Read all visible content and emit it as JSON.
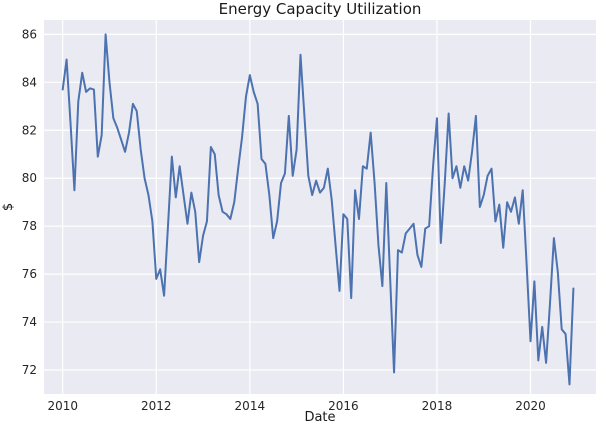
{
  "chart_data": {
    "type": "line",
    "title": "Energy Capacity Utilization",
    "xlabel": "Date",
    "ylabel": "$",
    "xlim": [
      2009.6,
      2021.4
    ],
    "ylim": [
      71.0,
      86.6
    ],
    "grid": true,
    "x_ticks": [
      2010,
      2012,
      2014,
      2016,
      2018,
      2020
    ],
    "y_ticks": [
      72,
      74,
      76,
      78,
      80,
      82,
      84,
      86
    ],
    "x_tick_labels": [
      "2010",
      "2012",
      "2014",
      "2016",
      "2018",
      "2020"
    ],
    "y_tick_labels": [
      "72",
      "74",
      "76",
      "78",
      "80",
      "82",
      "84",
      "86"
    ],
    "series": [
      {
        "color": "#4c72b0",
        "x": [
          2010.0,
          2010.083,
          2010.167,
          2010.25,
          2010.333,
          2010.417,
          2010.5,
          2010.583,
          2010.667,
          2010.75,
          2010.833,
          2010.917,
          2011.0,
          2011.083,
          2011.167,
          2011.25,
          2011.333,
          2011.417,
          2011.5,
          2011.583,
          2011.667,
          2011.75,
          2011.833,
          2011.917,
          2012.0,
          2012.083,
          2012.167,
          2012.25,
          2012.333,
          2012.417,
          2012.5,
          2012.583,
          2012.667,
          2012.75,
          2012.833,
          2012.917,
          2013.0,
          2013.083,
          2013.167,
          2013.25,
          2013.333,
          2013.417,
          2013.5,
          2013.583,
          2013.667,
          2013.75,
          2013.833,
          2013.917,
          2014.0,
          2014.083,
          2014.167,
          2014.25,
          2014.333,
          2014.417,
          2014.5,
          2014.583,
          2014.667,
          2014.75,
          2014.833,
          2014.917,
          2015.0,
          2015.083,
          2015.167,
          2015.25,
          2015.333,
          2015.417,
          2015.5,
          2015.583,
          2015.667,
          2015.75,
          2015.833,
          2015.917,
          2016.0,
          2016.083,
          2016.167,
          2016.25,
          2016.333,
          2016.417,
          2016.5,
          2016.583,
          2016.667,
          2016.75,
          2016.833,
          2016.917,
          2017.0,
          2017.083,
          2017.167,
          2017.25,
          2017.333,
          2017.417,
          2017.5,
          2017.583,
          2017.667,
          2017.75,
          2017.833,
          2017.917,
          2018.0,
          2018.083,
          2018.167,
          2018.25,
          2018.333,
          2018.417,
          2018.5,
          2018.583,
          2018.667,
          2018.75,
          2018.833,
          2018.917,
          2019.0,
          2019.083,
          2019.167,
          2019.25,
          2019.333,
          2019.417,
          2019.5,
          2019.583,
          2019.667,
          2019.75,
          2019.833,
          2019.917,
          2020.0,
          2020.083,
          2020.167,
          2020.25,
          2020.333,
          2020.417,
          2020.5,
          2020.583,
          2020.667,
          2020.75,
          2020.833,
          2020.917
        ],
        "y": [
          83.7,
          84.95,
          82.3,
          79.5,
          83.2,
          84.4,
          83.6,
          83.75,
          83.7,
          80.9,
          81.8,
          86.0,
          84.0,
          82.5,
          82.1,
          81.6,
          81.1,
          81.9,
          83.1,
          82.8,
          81.2,
          80.0,
          79.3,
          78.2,
          75.8,
          76.2,
          75.1,
          78.0,
          80.9,
          79.2,
          80.5,
          79.3,
          78.1,
          79.4,
          78.6,
          76.5,
          77.6,
          78.2,
          81.3,
          81.0,
          79.3,
          78.6,
          78.5,
          78.3,
          79.0,
          80.4,
          81.7,
          83.4,
          84.3,
          83.6,
          83.1,
          80.8,
          80.6,
          79.3,
          77.5,
          78.2,
          79.8,
          80.2,
          82.6,
          80.1,
          81.2,
          85.15,
          82.6,
          80.1,
          79.3,
          79.9,
          79.4,
          79.6,
          80.4,
          79.1,
          77.2,
          75.3,
          78.5,
          78.3,
          75.0,
          79.5,
          78.3,
          80.5,
          80.4,
          81.9,
          79.8,
          77.2,
          75.5,
          79.8,
          75.8,
          71.9,
          77.0,
          76.9,
          77.7,
          77.9,
          78.1,
          76.8,
          76.3,
          77.9,
          78.0,
          80.5,
          82.5,
          77.3,
          79.8,
          82.7,
          80.0,
          80.5,
          79.6,
          80.5,
          79.9,
          81.1,
          82.6,
          78.8,
          79.3,
          80.1,
          80.4,
          78.2,
          78.9,
          77.1,
          79.0,
          78.6,
          79.2,
          78.1,
          79.5,
          76.4,
          73.2,
          75.7,
          72.4,
          73.8,
          72.3,
          74.8,
          77.5,
          76.1,
          73.7,
          73.5,
          71.4,
          75.4
        ]
      }
    ]
  }
}
